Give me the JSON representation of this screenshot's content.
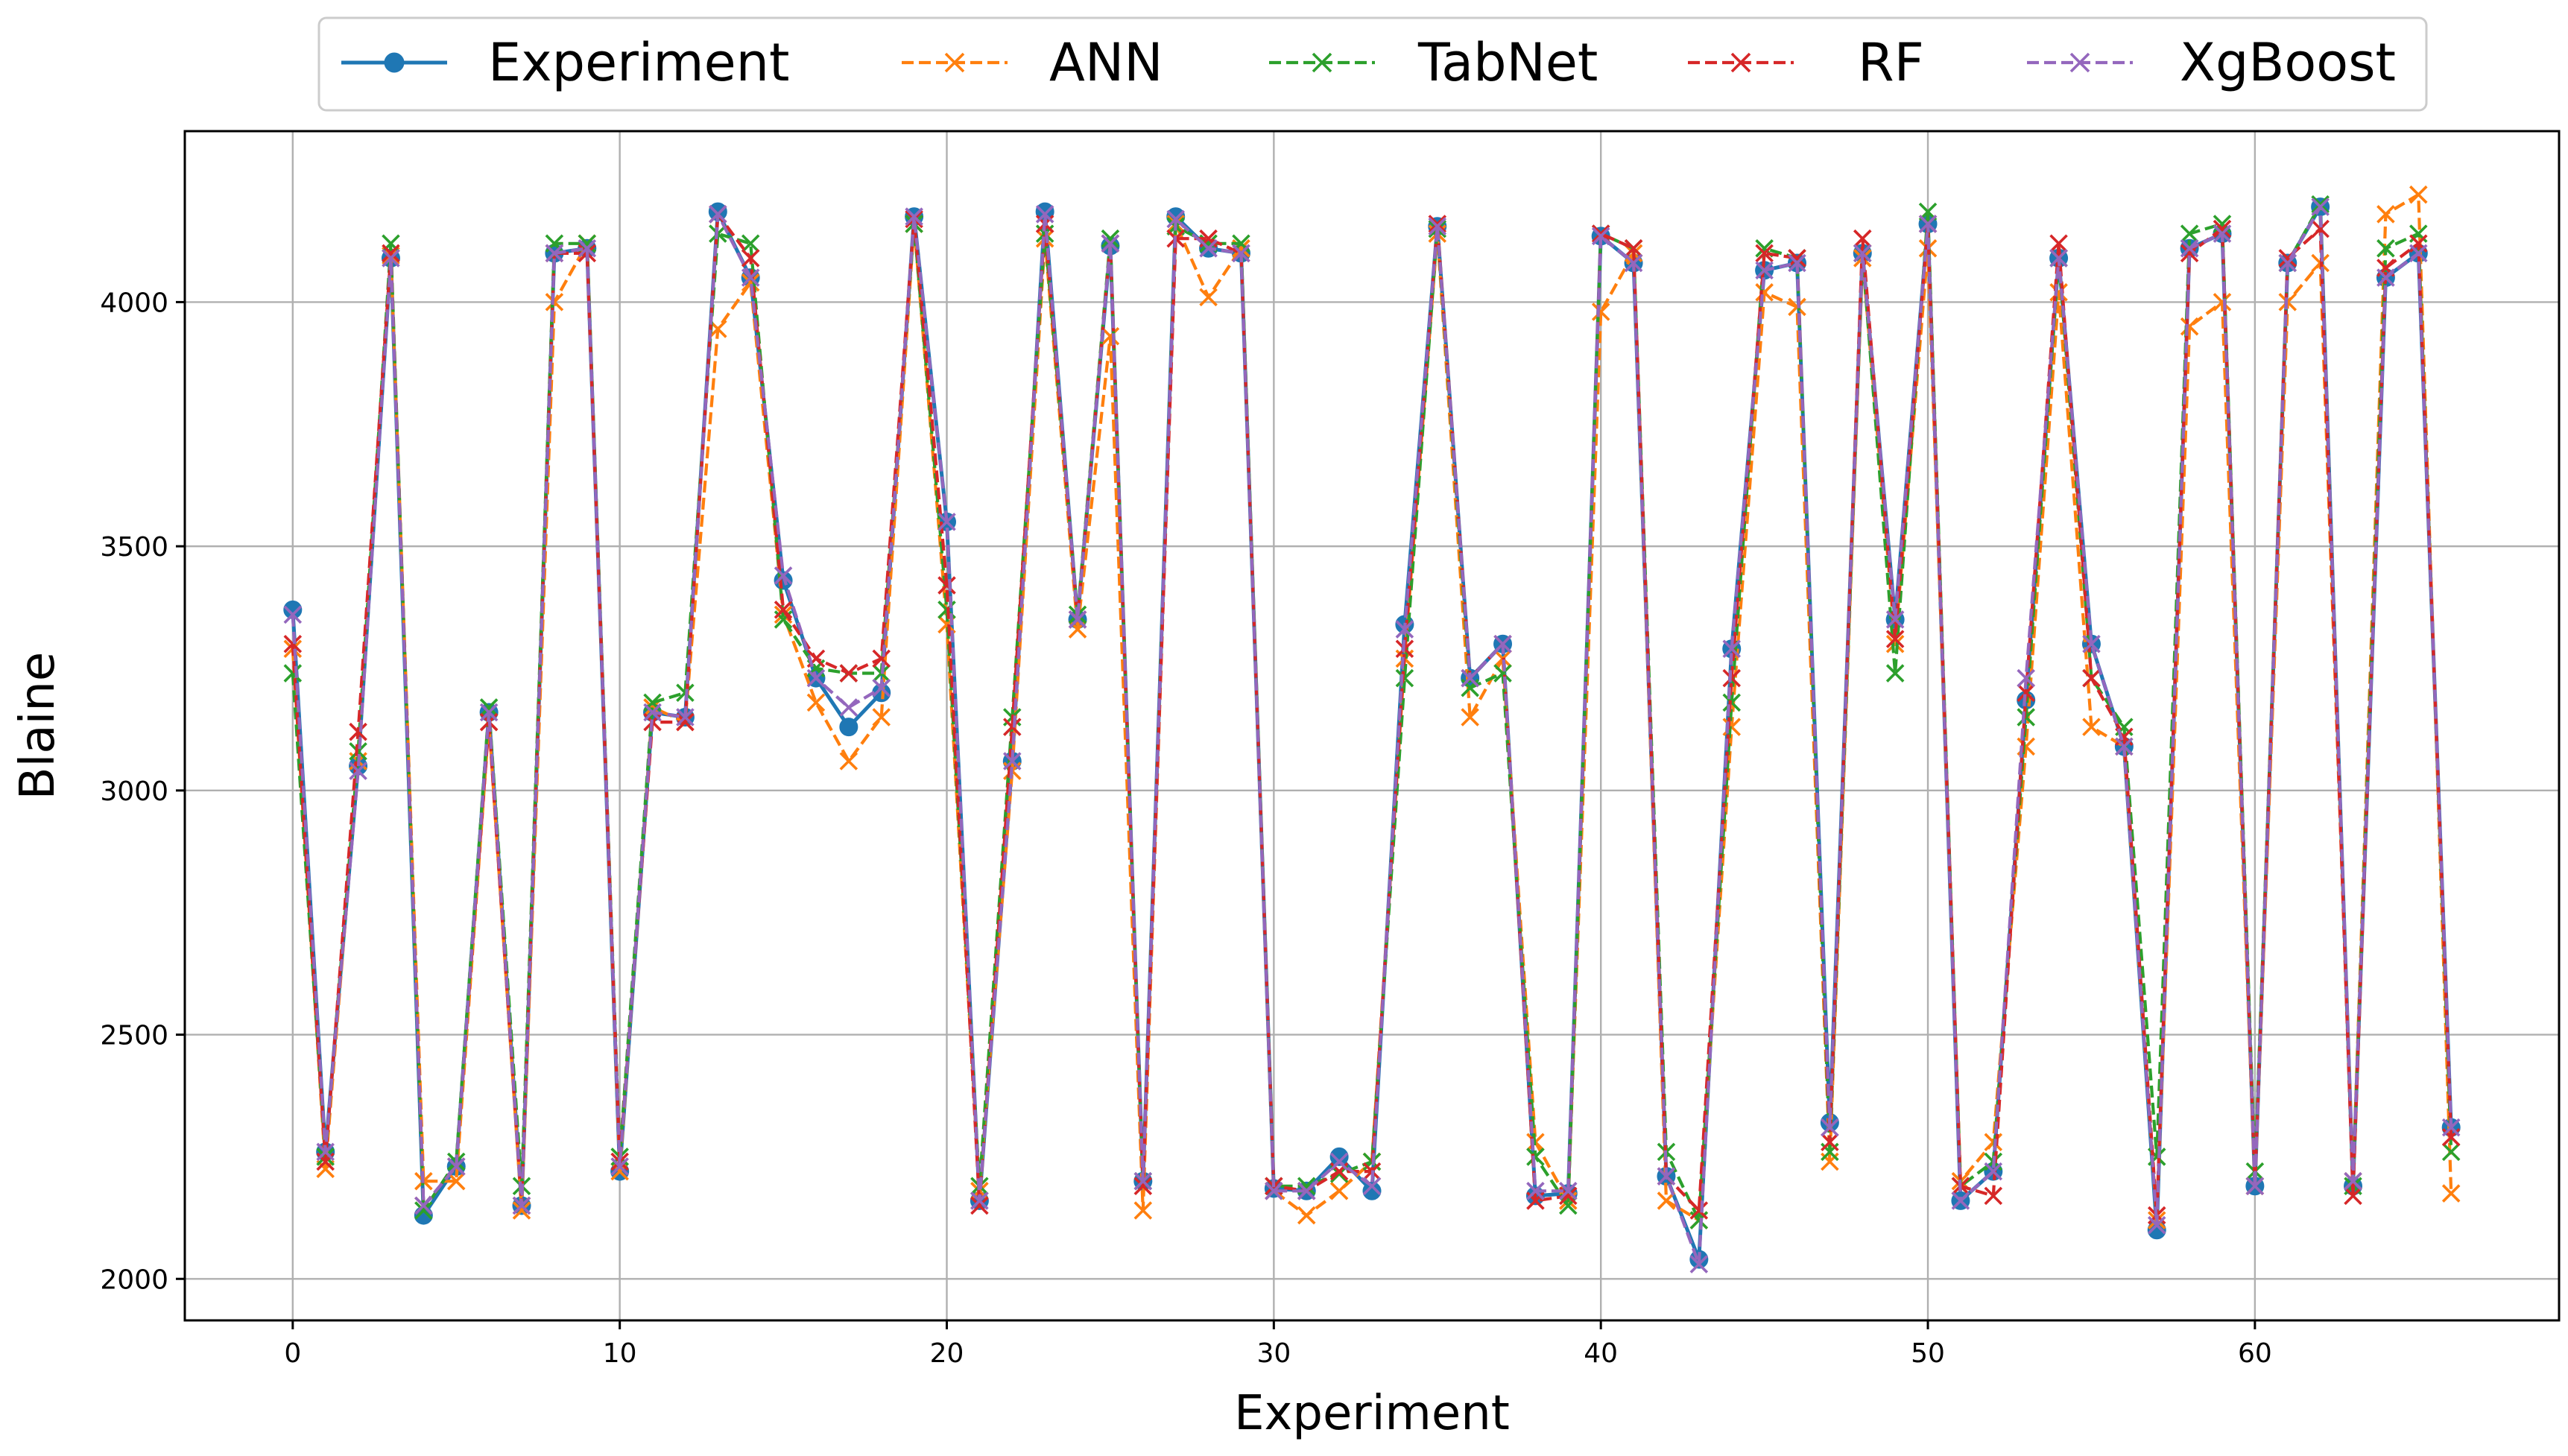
{
  "chart_data": {
    "type": "line",
    "title": "",
    "xlabel": "Experiment",
    "ylabel": "Blaine",
    "xlim": [
      -3.3,
      69.3
    ],
    "ylim": [
      1915,
      4350
    ],
    "grid": true,
    "legend_position": "top-center",
    "x_ticks": [
      0,
      10,
      20,
      30,
      40,
      50,
      60
    ],
    "x_tick_labels": [
      "0",
      "10",
      "20",
      "30",
      "40",
      "50",
      "60"
    ],
    "y_ticks": [
      2000,
      2500,
      3000,
      3500,
      4000
    ],
    "y_tick_labels": [
      "2000",
      "2500",
      "3000",
      "3500",
      "4000"
    ],
    "series": [
      {
        "name": "Experiment",
        "color": "#1f77b4",
        "style": "solid",
        "marker": "circle",
        "values": [
          3370,
          2260,
          3050,
          4090,
          2130,
          2230,
          3160,
          2150,
          4100,
          4110,
          2220,
          3160,
          3150,
          4185,
          4050,
          3430,
          3230,
          3130,
          3200,
          4175,
          3550,
          2160,
          3060,
          4185,
          3350,
          4115,
          2200,
          4175,
          4110,
          4100,
          2185,
          2180,
          2250,
          2180,
          3340,
          4155,
          3230,
          3300,
          2170,
          2175,
          4135,
          4080,
          2210,
          2040,
          3290,
          4065,
          4080,
          2320,
          4100,
          3350,
          4160,
          2160,
          2220,
          3185,
          4090,
          3300,
          3090,
          2100,
          4110,
          4140,
          2190,
          4080,
          4195,
          2190,
          4050,
          4100,
          2310
        ]
      },
      {
        "name": "ANN",
        "color": "#ff7f0e",
        "style": "dashed",
        "marker": "x",
        "values": [
          3290,
          2225,
          3060,
          4095,
          2200,
          2200,
          3140,
          2140,
          4000,
          4120,
          2220,
          3170,
          3140,
          3945,
          4040,
          3360,
          3180,
          3060,
          3150,
          4160,
          3340,
          2180,
          3040,
          4130,
          3330,
          3930,
          2140,
          4160,
          4010,
          4110,
          2180,
          2130,
          2180,
          2240,
          3270,
          4140,
          3150,
          3270,
          2280,
          2160,
          3980,
          4100,
          2160,
          2120,
          3130,
          4020,
          3990,
          2240,
          4090,
          3300,
          4110,
          2200,
          2280,
          3090,
          4020,
          3130,
          3090,
          2120,
          3950,
          4000,
          2190,
          4000,
          4080,
          2200,
          4180,
          4220,
          2175
        ]
      },
      {
        "name": "TabNet",
        "color": "#2ca02c",
        "style": "dashed",
        "marker": "x",
        "values": [
          3240,
          2250,
          3080,
          4120,
          2140,
          2240,
          3170,
          2190,
          4120,
          4120,
          2250,
          3180,
          3200,
          4140,
          4120,
          3350,
          3250,
          3240,
          3240,
          4160,
          3370,
          2190,
          3150,
          4140,
          3360,
          4130,
          2200,
          4155,
          4120,
          4120,
          2190,
          2190,
          2215,
          2240,
          3230,
          4150,
          3210,
          3240,
          2250,
          2150,
          4140,
          4110,
          2260,
          2120,
          3180,
          4110,
          4090,
          2260,
          4100,
          3240,
          4185,
          2190,
          2240,
          3150,
          4090,
          3230,
          3130,
          2250,
          4140,
          4160,
          2220,
          4080,
          4200,
          2190,
          4110,
          4140,
          2260
        ]
      },
      {
        "name": "RF",
        "color": "#d62728",
        "style": "dashed",
        "marker": "x",
        "values": [
          3300,
          2240,
          3120,
          4100,
          2150,
          2230,
          3140,
          2150,
          4100,
          4100,
          2240,
          3140,
          3140,
          4180,
          4090,
          3370,
          3270,
          3240,
          3270,
          4170,
          3420,
          2150,
          3130,
          4160,
          3350,
          4120,
          2190,
          4130,
          4130,
          4100,
          2190,
          2180,
          2220,
          2220,
          3290,
          4160,
          3230,
          3300,
          2160,
          2170,
          4140,
          4110,
          2210,
          2140,
          3230,
          4100,
          4090,
          2280,
          4130,
          3310,
          4160,
          2190,
          2170,
          3200,
          4120,
          3230,
          3110,
          2130,
          4100,
          4150,
          2190,
          4090,
          4150,
          2170,
          4070,
          4120,
          2290
        ]
      },
      {
        "name": "XgBoost",
        "color": "#9467bd",
        "style": "dashed",
        "marker": "x",
        "values": [
          3360,
          2260,
          3040,
          4090,
          2150,
          2230,
          3160,
          2150,
          4100,
          4110,
          2230,
          3160,
          3150,
          4180,
          4050,
          3440,
          3230,
          3170,
          3210,
          4175,
          3550,
          2160,
          3060,
          4180,
          3350,
          4120,
          2200,
          4170,
          4110,
          4100,
          2180,
          2180,
          2240,
          2190,
          3330,
          4155,
          3230,
          3300,
          2180,
          2180,
          4135,
          4080,
          2210,
          2030,
          3290,
          4065,
          4080,
          2310,
          4100,
          3350,
          4160,
          2160,
          2220,
          3230,
          4090,
          3300,
          3090,
          2110,
          4110,
          4140,
          2190,
          4080,
          4195,
          2200,
          4050,
          4100,
          2310
        ]
      }
    ]
  }
}
